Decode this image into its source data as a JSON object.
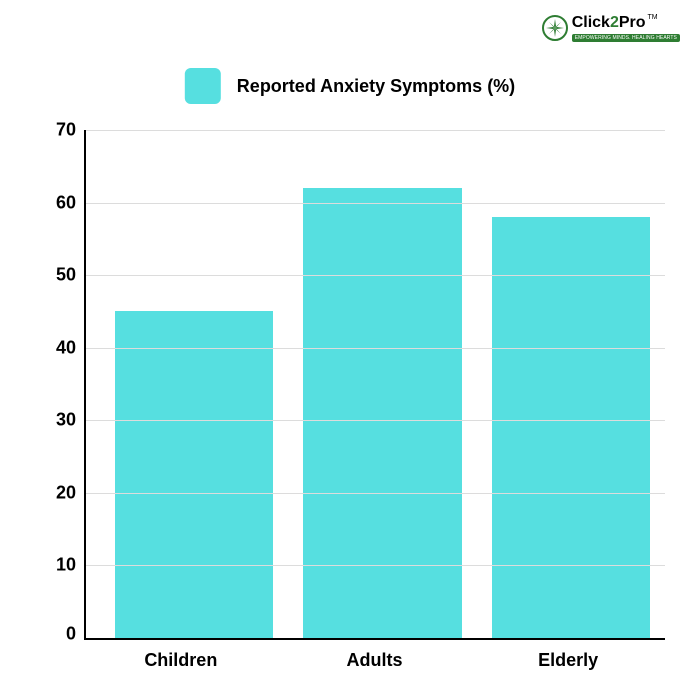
{
  "logo": {
    "text_part1": "Click",
    "text_part2": "2",
    "text_part3": "Pro",
    "tm": "TM",
    "subtitle": "EMPOWERING MINDS. HEALING HEARTS",
    "brand_color": "#2e7d32"
  },
  "legend": {
    "label": "Reported Anxiety Symptoms (%)",
    "swatch_color": "#56dfe0",
    "label_fontsize": 18
  },
  "chart": {
    "type": "bar",
    "categories": [
      "Children",
      "Adults",
      "Elderly"
    ],
    "values": [
      45,
      62,
      58
    ],
    "bar_color": "#56dfe0",
    "ylim": [
      0,
      70
    ],
    "ytick_step": 10,
    "yticks": [
      0,
      10,
      20,
      30,
      40,
      50,
      60,
      70
    ],
    "background_color": "#ffffff",
    "grid_color": "#dcdcdc",
    "axis_color": "#000000",
    "bar_width_pct": 28,
    "label_fontsize": 18,
    "label_fontweight": 700
  }
}
